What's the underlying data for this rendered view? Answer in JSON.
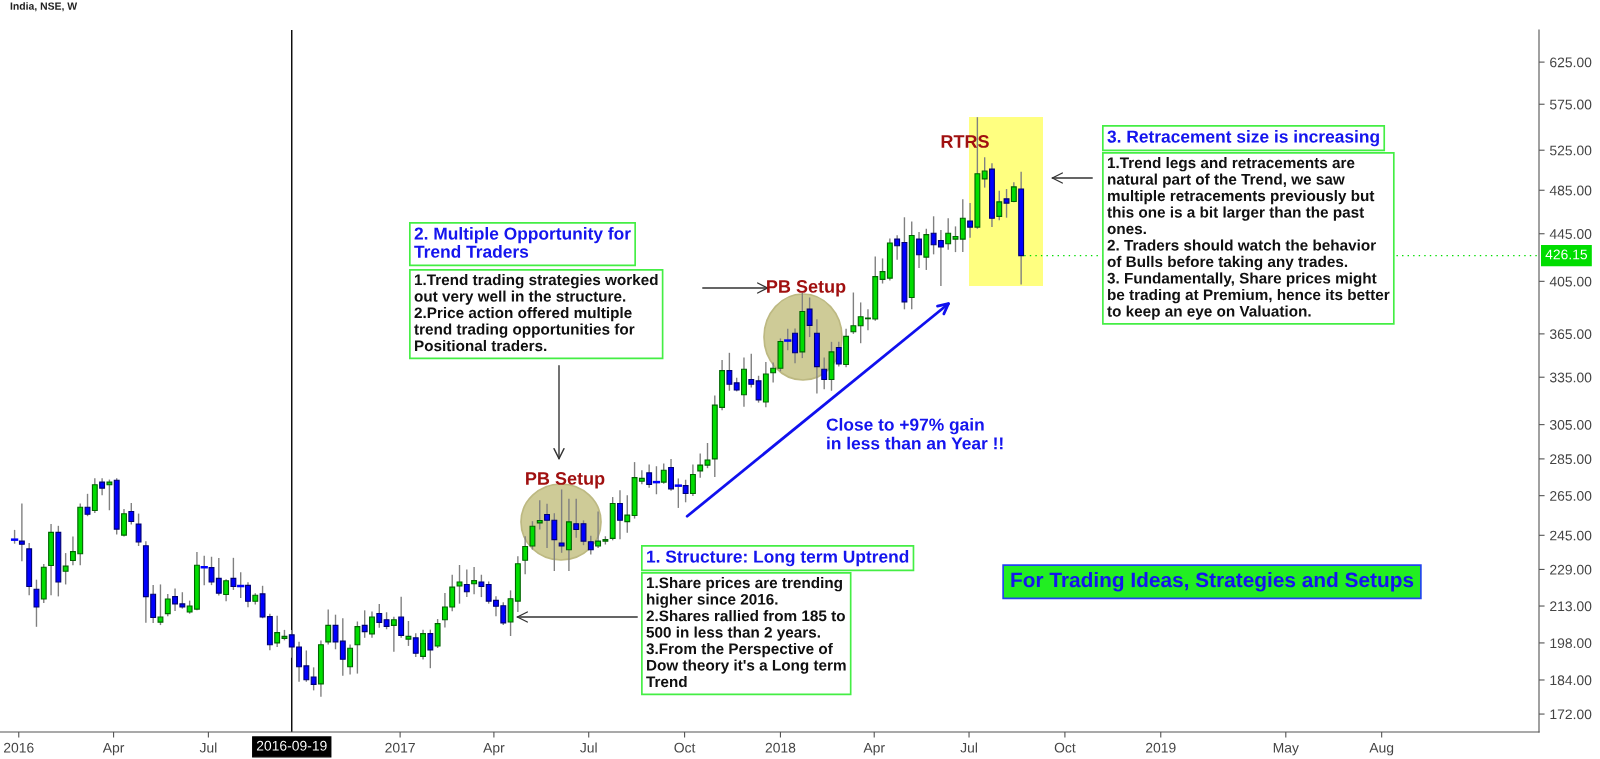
{
  "chart_data": {
    "type": "candlestick",
    "title": "India, NSE, W",
    "x": [
      "2015-12-28",
      "2016-01-04",
      "2016-01-11",
      "2016-01-18",
      "2016-01-25",
      "2016-02-01",
      "2016-02-08",
      "2016-02-15",
      "2016-02-22",
      "2016-02-29",
      "2016-03-07",
      "2016-03-14",
      "2016-03-21",
      "2016-03-28",
      "2016-04-04",
      "2016-04-11",
      "2016-04-18",
      "2016-04-25",
      "2016-05-02",
      "2016-05-09",
      "2016-05-16",
      "2016-05-23",
      "2016-05-30",
      "2016-06-06",
      "2016-06-13",
      "2016-06-20",
      "2016-06-27",
      "2016-07-04",
      "2016-07-11",
      "2016-07-18",
      "2016-07-25",
      "2016-08-01",
      "2016-08-08",
      "2016-08-15",
      "2016-08-22",
      "2016-08-29",
      "2016-09-05",
      "2016-09-12",
      "2016-09-19",
      "2016-09-26",
      "2016-10-03",
      "2016-10-10",
      "2016-10-17",
      "2016-10-24",
      "2016-10-31",
      "2016-11-07",
      "2016-11-14",
      "2016-11-21",
      "2016-11-28",
      "2016-12-05",
      "2016-12-12",
      "2016-12-19",
      "2016-12-26",
      "2017-01-02",
      "2017-01-09",
      "2017-01-16",
      "2017-01-23",
      "2017-01-30",
      "2017-02-06",
      "2017-02-13",
      "2017-02-20",
      "2017-02-27",
      "2017-03-06",
      "2017-03-13",
      "2017-03-20",
      "2017-03-27",
      "2017-04-03",
      "2017-04-10",
      "2017-04-17",
      "2017-04-24",
      "2017-05-01",
      "2017-05-08",
      "2017-05-15",
      "2017-05-22",
      "2017-05-29",
      "2017-06-05",
      "2017-06-12",
      "2017-06-19",
      "2017-06-26",
      "2017-07-03",
      "2017-07-10",
      "2017-07-17",
      "2017-07-24",
      "2017-07-31",
      "2017-08-07",
      "2017-08-14",
      "2017-08-21",
      "2017-08-28",
      "2017-09-04",
      "2017-09-11",
      "2017-09-18",
      "2017-09-25",
      "2017-10-02",
      "2017-10-09",
      "2017-10-16",
      "2017-10-23",
      "2017-10-30",
      "2017-11-06",
      "2017-11-13",
      "2017-11-20",
      "2017-11-27",
      "2017-12-04",
      "2017-12-11",
      "2017-12-18",
      "2017-12-25",
      "2018-01-01",
      "2018-01-08",
      "2018-01-15",
      "2018-01-22",
      "2018-01-29",
      "2018-02-05",
      "2018-02-12",
      "2018-02-19",
      "2018-02-26",
      "2018-03-05",
      "2018-03-12",
      "2018-03-19",
      "2018-03-26",
      "2018-04-02",
      "2018-04-09",
      "2018-04-16",
      "2018-04-23",
      "2018-04-30",
      "2018-05-07",
      "2018-05-14",
      "2018-05-21",
      "2018-05-28",
      "2018-06-04",
      "2018-06-11",
      "2018-06-18",
      "2018-06-25",
      "2018-07-02",
      "2018-07-09",
      "2018-07-16",
      "2018-07-23",
      "2018-07-30",
      "2018-08-06",
      "2018-08-13",
      "2018-08-20"
    ],
    "ohlc": [
      [
        242.9,
        247.3,
        241.3,
        242.9
      ],
      [
        242.2,
        260.5,
        233.1,
        240.7
      ],
      [
        238.5,
        241.0,
        217.9,
        221.4
      ],
      [
        220.2,
        224.1,
        204.7,
        212.6
      ],
      [
        216.0,
        231.1,
        214.6,
        230.0
      ],
      [
        230.8,
        250.2,
        217.9,
        246.4
      ],
      [
        246.4,
        249.3,
        217.4,
        223.4
      ],
      [
        228.2,
        236.2,
        222.6,
        230.5
      ],
      [
        233.1,
        244.1,
        231.2,
        237.2
      ],
      [
        236.2,
        260.5,
        231.2,
        259.0
      ],
      [
        259.0,
        265.6,
        254.8,
        255.4
      ],
      [
        257.3,
        273.9,
        256.4,
        270.8
      ],
      [
        272.2,
        273.9,
        265.6,
        269.0
      ],
      [
        270.8,
        273.2,
        257.8,
        272.2
      ],
      [
        273.2,
        273.9,
        245.7,
        248.0
      ],
      [
        245.1,
        257.8,
        244.8,
        255.7
      ],
      [
        256.8,
        260.8,
        250.7,
        251.8
      ],
      [
        250.5,
        255.4,
        240.2,
        241.8
      ],
      [
        240.0,
        241.8,
        206.3,
        217.0
      ],
      [
        218.0,
        221.7,
        206.2,
        208.2
      ],
      [
        206.3,
        222.0,
        205.4,
        208.4
      ],
      [
        209.8,
        217.8,
        209.0,
        216.0
      ],
      [
        217.0,
        220.2,
        211.2,
        213.9
      ],
      [
        213.9,
        218.6,
        212.2,
        212.6
      ],
      [
        210.5,
        215.0,
        210.1,
        213.0
      ],
      [
        211.7,
        236.7,
        211.5,
        230.9
      ],
      [
        230.0,
        235.0,
        222.3,
        230.0
      ],
      [
        229.8,
        234.5,
        222.3,
        223.4
      ],
      [
        225.0,
        233.9,
        217.8,
        218.5
      ],
      [
        217.9,
        224.3,
        215.3,
        223.9
      ],
      [
        225.0,
        234.0,
        220.2,
        221.4
      ],
      [
        221.6,
        227.4,
        216.7,
        221.6
      ],
      [
        221.9,
        223.0,
        212.8,
        215.0
      ],
      [
        215.0,
        218.2,
        213.9,
        217.6
      ],
      [
        218.2,
        221.4,
        208.2,
        208.4
      ],
      [
        208.6,
        209.5,
        195.4,
        197.3
      ],
      [
        198.0,
        208.7,
        196.7,
        202.1
      ],
      [
        199.8,
        202.9,
        199.3,
        200.6
      ],
      [
        201.2,
        202.9,
        192.5,
        196.4
      ],
      [
        196.4,
        198.2,
        183.6,
        188.9
      ],
      [
        189.2,
        194.8,
        183.6,
        184.1
      ],
      [
        185.1,
        188.4,
        180.5,
        182.4
      ],
      [
        182.6,
        198.7,
        178.2,
        197.3
      ],
      [
        198.4,
        211.2,
        197.7,
        205.0
      ],
      [
        205.0,
        209.1,
        195.8,
        198.4
      ],
      [
        198.7,
        207.6,
        185.8,
        191.7
      ],
      [
        188.9,
        197.1,
        186.3,
        195.9
      ],
      [
        197.3,
        206.3,
        186.6,
        204.5
      ],
      [
        205.0,
        210.9,
        200.3,
        202.5
      ],
      [
        201.6,
        210.4,
        200.3,
        208.4
      ],
      [
        209.9,
        213.6,
        204.3,
        206.2
      ],
      [
        207.3,
        210.1,
        203.7,
        204.6
      ],
      [
        205.0,
        208.2,
        194.8,
        207.3
      ],
      [
        208.4,
        216.7,
        200.3,
        201.0
      ],
      [
        199.5,
        206.5,
        197.1,
        200.6
      ],
      [
        200.0,
        201.6,
        192.8,
        194.0
      ],
      [
        192.8,
        203.0,
        191.9,
        201.7
      ],
      [
        201.7,
        203.0,
        188.6,
        195.3
      ],
      [
        196.8,
        207.3,
        196.3,
        205.7
      ],
      [
        207.3,
        218.3,
        204.4,
        212.6
      ],
      [
        212.6,
        226.3,
        211.1,
        221.1
      ],
      [
        221.6,
        230.7,
        214.3,
        223.4
      ],
      [
        222.3,
        228.6,
        217.1,
        219.1
      ],
      [
        222.6,
        229.8,
        218.3,
        224.0
      ],
      [
        223.4,
        226.3,
        217.1,
        221.4
      ],
      [
        222.3,
        223.3,
        214.3,
        215.1
      ],
      [
        215.4,
        216.9,
        209.0,
        212.9
      ],
      [
        213.1,
        214.3,
        205.4,
        206.0
      ],
      [
        206.4,
        219.4,
        201.0,
        216.1
      ],
      [
        215.1,
        234.7,
        210.8,
        231.6
      ],
      [
        233.2,
        244.2,
        227.1,
        239.6
      ],
      [
        239.9,
        251.6,
        238.5,
        249.4
      ],
      [
        251.1,
        262.2,
        248.2,
        252.3
      ],
      [
        255.3,
        260.4,
        239.3,
        252.4
      ],
      [
        252.4,
        255.6,
        228.6,
        242.9
      ],
      [
        241.3,
        267.9,
        237.0,
        239.9
      ],
      [
        238.1,
        263.0,
        228.6,
        251.6
      ],
      [
        250.7,
        263.0,
        244.2,
        247.8
      ],
      [
        250.7,
        252.0,
        240.6,
        242.2
      ],
      [
        241.9,
        244.5,
        236.2,
        238.1
      ],
      [
        239.9,
        256.5,
        239.3,
        242.2
      ],
      [
        242.2,
        244.2,
        240.9,
        242.9
      ],
      [
        243.5,
        263.9,
        242.9,
        260.9
      ],
      [
        260.9,
        267.5,
        243.4,
        252.4
      ],
      [
        251.7,
        264.9,
        246.6,
        255.0
      ],
      [
        254.8,
        282.8,
        253.6,
        274.6
      ],
      [
        272.7,
        278.3,
        271.4,
        274.2
      ],
      [
        277.2,
        281.5,
        269.6,
        271.0
      ],
      [
        272.2,
        280.5,
        266.1,
        272.2
      ],
      [
        272.2,
        282.0,
        271.7,
        278.7
      ],
      [
        280.2,
        284.6,
        267.9,
        268.6
      ],
      [
        270.3,
        273.8,
        259.0,
        270.3
      ],
      [
        270.3,
        273.1,
        261.9,
        266.1
      ],
      [
        266.1,
        281.5,
        265.2,
        276.3
      ],
      [
        278.3,
        287.6,
        275.0,
        281.5
      ],
      [
        281.5,
        293.7,
        280.2,
        284.4
      ],
      [
        285.0,
        322.7,
        275.4,
        317.0
      ],
      [
        315.6,
        346.2,
        314.3,
        339.4
      ],
      [
        339.4,
        351.1,
        326.6,
        330.4
      ],
      [
        331.3,
        334.2,
        326.2,
        326.6
      ],
      [
        323.6,
        347.8,
        316.4,
        340.3
      ],
      [
        333.5,
        350.4,
        328.7,
        330.4
      ],
      [
        332.6,
        335.5,
        319.0,
        320.3
      ],
      [
        319.0,
        344.8,
        316.1,
        337.1
      ],
      [
        338.0,
        344.4,
        331.9,
        341.0
      ],
      [
        341.0,
        361.2,
        339.4,
        359.5
      ],
      [
        360.2,
        368.2,
        353.9,
        360.2
      ],
      [
        365.5,
        368.4,
        344.8,
        351.6
      ],
      [
        352.2,
        395.6,
        348.4,
        381.5
      ],
      [
        383.3,
        391.7,
        363.2,
        371.2
      ],
      [
        365.5,
        375.2,
        324.9,
        342.1
      ],
      [
        340.3,
        347.8,
        327.6,
        333.5
      ],
      [
        333.5,
        358.8,
        326.6,
        352.2
      ],
      [
        355.3,
        358.8,
        342.6,
        343.9
      ],
      [
        343.5,
        368.2,
        342.1,
        363.2
      ],
      [
        366.5,
        395.6,
        365.5,
        370.9
      ],
      [
        370.9,
        387.9,
        358.8,
        377.6
      ],
      [
        376.1,
        382.7,
        368.2,
        376.6
      ],
      [
        375.9,
        424.8,
        375.2,
        408.8
      ],
      [
        406.6,
        423.2,
        403.8,
        412.9
      ],
      [
        407.6,
        440.3,
        406.2,
        436.9
      ],
      [
        440.3,
        443.1,
        423.2,
        434.6
      ],
      [
        437.4,
        459.1,
        383.7,
        388.9
      ],
      [
        392.3,
        455.2,
        383.7,
        443.4
      ],
      [
        440.3,
        446.0,
        416.4,
        426.9
      ],
      [
        424.9,
        448.8,
        414.8,
        444.2
      ],
      [
        445.4,
        460.0,
        427.8,
        435.4
      ],
      [
        439.1,
        447.8,
        401.9,
        433.5
      ],
      [
        436.3,
        458.2,
        431.7,
        445.4
      ],
      [
        440.3,
        450.9,
        429.7,
        442.6
      ],
      [
        440.3,
        475.8,
        429.7,
        458.8
      ],
      [
        456.4,
        472.2,
        442.0,
        450.9
      ],
      [
        450.9,
        559.7,
        450.0,
        501.1
      ],
      [
        496.0,
        517.0,
        488.2,
        503.8
      ],
      [
        505.7,
        510.9,
        451.5,
        458.8
      ],
      [
        460.6,
        483.9,
        457.6,
        474.0
      ],
      [
        476.8,
        485.5,
        460.0,
        472.8
      ],
      [
        474.3,
        492.1,
        474.3,
        488.2
      ],
      [
        486.2,
        502.5,
        403.0,
        426.15
      ]
    ],
    "colors": [
      "#0000ff",
      "#0000ff",
      "#0000ff",
      "#0000ff",
      "#00dd00",
      "#00dd00",
      "#0000ff",
      "#00dd00",
      "#00dd00",
      "#00dd00",
      "#0000ff",
      "#00dd00",
      "#0000ff",
      "#00dd00",
      "#0000ff",
      "#00dd00",
      "#0000ff",
      "#0000ff",
      "#0000ff",
      "#0000ff",
      "#00dd00",
      "#00dd00",
      "#0000ff",
      "#0000ff",
      "#00dd00",
      "#00dd00",
      "#0000ff",
      "#0000ff",
      "#0000ff",
      "#00dd00",
      "#0000ff",
      "#0000ff",
      "#0000ff",
      "#00dd00",
      "#0000ff",
      "#0000ff",
      "#00dd00",
      "#00dd00",
      "#0000ff",
      "#0000ff",
      "#0000ff",
      "#0000ff",
      "#00dd00",
      "#00dd00",
      "#0000ff",
      "#0000ff",
      "#00dd00",
      "#00dd00",
      "#0000ff",
      "#00dd00",
      "#0000ff",
      "#0000ff",
      "#00dd00",
      "#0000ff",
      "#00dd00",
      "#0000ff",
      "#00dd00",
      "#0000ff",
      "#00dd00",
      "#00dd00",
      "#00dd00",
      "#00dd00",
      "#0000ff",
      "#00dd00",
      "#0000ff",
      "#0000ff",
      "#0000ff",
      "#0000ff",
      "#00dd00",
      "#00dd00",
      "#00dd00",
      "#00dd00",
      "#00dd00",
      "#0000ff",
      "#0000ff",
      "#0000ff",
      "#00dd00",
      "#0000ff",
      "#0000ff",
      "#0000ff",
      "#00dd00",
      "#00dd00",
      "#00dd00",
      "#0000ff",
      "#00dd00",
      "#00dd00",
      "#00dd00",
      "#0000ff",
      "#0000ff",
      "#00dd00",
      "#0000ff",
      "#0000ff",
      "#0000ff",
      "#00dd00",
      "#00dd00",
      "#00dd00",
      "#00dd00",
      "#00dd00",
      "#0000ff",
      "#0000ff",
      "#00dd00",
      "#0000ff",
      "#0000ff",
      "#00dd00",
      "#00dd00",
      "#00dd00",
      "#0000ff",
      "#0000ff",
      "#00dd00",
      "#0000ff",
      "#0000ff",
      "#0000ff",
      "#00dd00",
      "#0000ff",
      "#00dd00",
      "#00dd00",
      "#00dd00",
      "#00dd00",
      "#00dd00",
      "#00dd00",
      "#00dd00",
      "#0000ff",
      "#0000ff",
      "#00dd00",
      "#0000ff",
      "#00dd00",
      "#0000ff",
      "#0000ff",
      "#00dd00",
      "#00dd00",
      "#00dd00",
      "#0000ff",
      "#00dd00",
      "#00dd00",
      "#0000ff",
      "#00dd00",
      "#0000ff",
      "#00dd00",
      "#0000ff"
    ],
    "log": true,
    "xlim": [
      "2015-12-14",
      "2019-12-30"
    ],
    "xticks": [
      {
        "value": "2016-01-01",
        "label": "2016"
      },
      {
        "value": "2016-04-01",
        "label": "Apr"
      },
      {
        "value": "2016-07-01",
        "label": "Jul"
      },
      {
        "value": "2017-01-01",
        "label": "2017"
      },
      {
        "value": "2017-04-01",
        "label": "Apr"
      },
      {
        "value": "2017-07-01",
        "label": "Jul"
      },
      {
        "value": "2017-10-01",
        "label": "Oct"
      },
      {
        "value": "2018-01-01",
        "label": "2018"
      },
      {
        "value": "2018-04-01",
        "label": "Apr"
      },
      {
        "value": "2018-07-01",
        "label": "Jul"
      },
      {
        "value": "2018-10-01",
        "label": "Oct"
      },
      {
        "value": "2019-01-01",
        "label": "2019"
      },
      {
        "value": "2019-05-01",
        "label": "May"
      },
      {
        "value": "2019-08-01",
        "label": "Aug"
      }
    ],
    "ylim": [
      166,
      666
    ],
    "yticks": [
      {
        "value": 172,
        "label": "172.00"
      },
      {
        "value": 184,
        "label": "184.00"
      },
      {
        "value": 198,
        "label": "198.00"
      },
      {
        "value": 213,
        "label": "213.00"
      },
      {
        "value": 229,
        "label": "229.00"
      },
      {
        "value": 245,
        "label": "245.00"
      },
      {
        "value": 265,
        "label": "265.00"
      },
      {
        "value": 285,
        "label": "285.00"
      },
      {
        "value": 305,
        "label": "305.00"
      },
      {
        "value": 335,
        "label": "335.00"
      },
      {
        "value": 365,
        "label": "365.00"
      },
      {
        "value": 405,
        "label": "405.00"
      },
      {
        "value": 445,
        "label": "445.00"
      },
      {
        "value": 485,
        "label": "485.00"
      },
      {
        "value": 525,
        "label": "525.00"
      },
      {
        "value": 575,
        "label": "575.00"
      },
      {
        "value": 625,
        "label": "625.00"
      }
    ],
    "ref_lines": [
      {
        "axis": "x",
        "value": "2016-09-19",
        "label": "2016-09-19",
        "color": "#000000"
      },
      {
        "axis": "y",
        "value": 426.15,
        "label": "426.15",
        "color": "#00dd00"
      }
    ],
    "annotations": [
      "RTRS",
      "PB Setup",
      "PB Setup",
      "2. Multiple Opportunity for\nTrend Traders",
      "1.Trend trading strategies worked\nout very well in the structure.\n2.Price action offered multiple\ntrend trading opportunities for\nPositional traders.",
      "1. Structure: Long term Uptrend",
      "1.Share prices are trending\nhigher since 2016.\n2.Shares rallied from 185 to\n500 in less than 2 years.\n3.From the Perspective of\nDow theory it's a Long term\nTrend",
      "3. Retracement size is increasing",
      "1.Trend legs and retracements are\nnatural part of the Trend, we saw\nmultiple retracements previously but\nthis one is a bit larger than the past\nones.\n2. Traders should watch the behavior\nof Bulls before taking any trades.\n3. Fundamentally, Share prices might\nbe trading at Premium, hence its better\nto keep an eye on Valuation.",
      "Close to +97% gain\nin less than an Year !!",
      "For Trading Ideas, Strategies and Setups"
    ]
  }
}
